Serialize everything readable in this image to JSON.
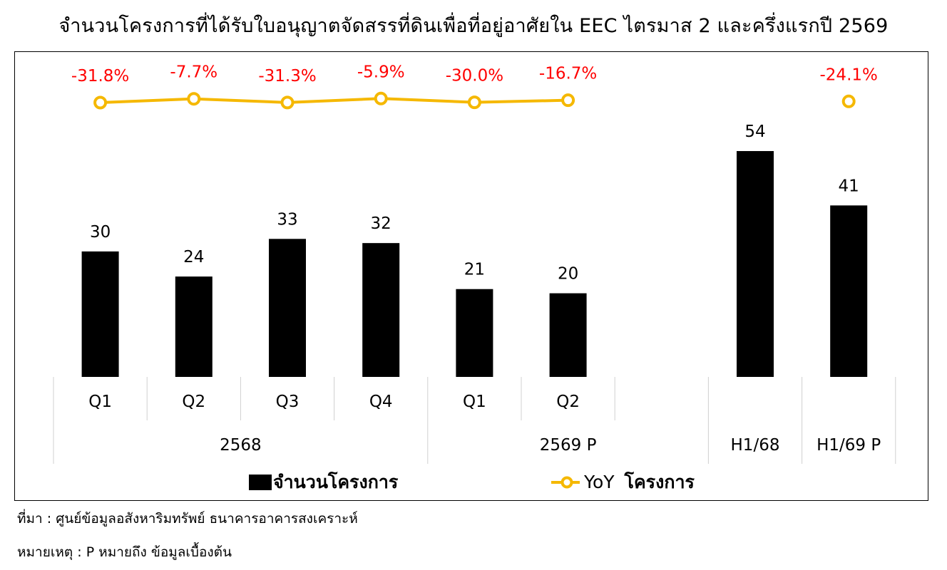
{
  "title": "จำนวนโครงการที่ได้รับใบอนุญาตจัดสรรที่ดินเพื่อที่อยู่อาศัยใน EEC ไตรมาส 2 และครึ่งแรกปี 2569",
  "chart_data": {
    "type": "bar",
    "title": "จำนวนโครงการที่ได้รับใบอนุญาตจัดสรรที่ดินเพื่อที่อยู่อาศัยใน EEC ไตรมาส 2 และครึ่งแรกปี 2569",
    "categories": [
      "Q1",
      "Q2",
      "Q3",
      "Q4",
      "Q1",
      "Q2",
      "",
      "H1/68",
      "H1/69 P"
    ],
    "groups": [
      {
        "label": "2568",
        "span": 4
      },
      {
        "label": "2569 P",
        "span": 3
      },
      {
        "label": "H1/68",
        "span": 1
      },
      {
        "label": "H1/69 P",
        "span": 1
      }
    ],
    "series": [
      {
        "name": "จำนวนโครงการ",
        "type": "bar",
        "values": [
          30,
          24,
          33,
          32,
          21,
          20,
          null,
          54,
          41
        ],
        "labels": [
          "30",
          "24",
          "33",
          "32",
          "21",
          "20",
          "",
          "54",
          "41"
        ]
      },
      {
        "name": "YoY โครงการ",
        "type": "line",
        "values": [
          -31.8,
          -7.7,
          -31.3,
          -5.9,
          -30.0,
          -16.7,
          null,
          null,
          -24.1
        ],
        "labels": [
          "-31.8%",
          "-7.7%",
          "-31.3%",
          "-5.9%",
          "-30.0%",
          "-16.7%",
          "",
          "",
          "-24.1%"
        ]
      }
    ],
    "ylim": [
      0,
      60
    ],
    "legend": {
      "position": "bottom",
      "bar_label": "จำนวนโครงการ",
      "line_label_prefix": "YoY",
      "line_label_suffix": "โครงการ"
    },
    "colors": {
      "bar": "#000000",
      "line": "#F5B800",
      "yoy_label": "#FF0000"
    }
  },
  "notes": {
    "source": "ที่มา : ศูนย์ข้อมูลอสังหาริมทรัพย์ ธนาคารอาคารสงเคราะห์",
    "remark": "หมายเหตุ : P หมายถึง ข้อมูลเบื้องต้น"
  }
}
